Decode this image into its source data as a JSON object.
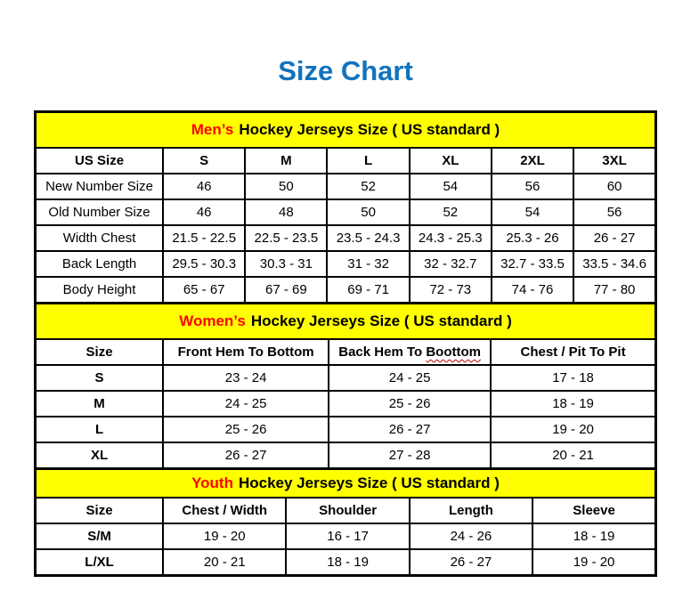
{
  "page_title": "Size Chart",
  "colors": {
    "title_blue": "#1173bd",
    "band_yellow": "#ffff00",
    "accent_red": "#ff0000",
    "border_black": "#000000",
    "background": "#ffffff"
  },
  "chart_data": [
    {
      "type": "table",
      "title_accent": "Men’s",
      "title_rest": "Hockey Jerseys Size ( US standard )",
      "columns": [
        "US Size",
        "S",
        "M",
        "L",
        "XL",
        "2XL",
        "3XL"
      ],
      "rows": [
        [
          "New Number Size",
          "46",
          "50",
          "52",
          "54",
          "56",
          "60"
        ],
        [
          "Old Number Size",
          "46",
          "48",
          "50",
          "52",
          "54",
          "56"
        ],
        [
          "Width Chest",
          "21.5 - 22.5",
          "22.5 - 23.5",
          "23.5 - 24.3",
          "24.3 - 25.3",
          "25.3 - 26",
          "26 - 27"
        ],
        [
          "Back Length",
          "29.5 - 30.3",
          "30.3 - 31",
          "31 - 32",
          "32 - 32.7",
          "32.7 - 33.5",
          "33.5 - 34.6"
        ],
        [
          "Body Height",
          "65 - 67",
          "67 - 69",
          "69 - 71",
          "72 - 73",
          "74 - 76",
          "77 - 80"
        ]
      ]
    },
    {
      "type": "table",
      "title_accent": "Women’s",
      "title_rest": "Hockey Jerseys Size ( US standard )",
      "columns": [
        "Size",
        "Front Hem To Bottom",
        "Back Hem To Boottom",
        "Chest / Pit To Pit"
      ],
      "squiggle": {
        "column": 2,
        "prefix": "Back Hem To ",
        "word": "Boottom"
      },
      "rows": [
        [
          "S",
          "23 - 24",
          "24 - 25",
          "17 - 18"
        ],
        [
          "M",
          "24 - 25",
          "25 - 26",
          "18 - 19"
        ],
        [
          "L",
          "25 - 26",
          "26 - 27",
          "19 - 20"
        ],
        [
          "XL",
          "26 - 27",
          "27 - 28",
          "20 - 21"
        ]
      ]
    },
    {
      "type": "table",
      "title_accent": "Youth",
      "title_rest": "Hockey Jerseys Size ( US standard )",
      "columns": [
        "Size",
        "Chest / Width",
        "Shoulder",
        "Length",
        "Sleeve"
      ],
      "rows": [
        [
          "S/M",
          "19 - 20",
          "16 - 17",
          "24 - 26",
          "18 - 19"
        ],
        [
          "L/XL",
          "20 - 21",
          "18 - 19",
          "26 - 27",
          "19 - 20"
        ]
      ]
    }
  ]
}
